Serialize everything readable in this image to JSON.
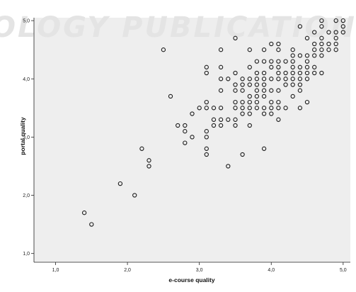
{
  "watermark": "OLOGY PUBLICATIONS",
  "colors": {
    "plot_background": "#eeeeee",
    "marker_stroke": "#1a1a1a",
    "watermark": "#e4e4e4"
  },
  "chart_data": {
    "type": "scatter",
    "xlabel": "e-course quality",
    "ylabel": "portal quality",
    "xlim": [
      0.7,
      5.1
    ],
    "ylim": [
      0.85,
      5.05
    ],
    "xticks": [
      "1,0",
      "2,0",
      "3,0",
      "4,0",
      "5,0"
    ],
    "yticks": [
      "1,0",
      "2,0",
      "3,0",
      "4,0",
      "5,0"
    ],
    "grid": false,
    "marker": "hollow-circle",
    "points": [
      [
        1.4,
        1.7
      ],
      [
        1.5,
        1.5
      ],
      [
        1.9,
        2.2
      ],
      [
        2.1,
        2.0
      ],
      [
        2.2,
        2.8
      ],
      [
        2.3,
        2.6
      ],
      [
        2.3,
        2.5
      ],
      [
        2.5,
        4.5
      ],
      [
        2.6,
        3.7
      ],
      [
        2.7,
        3.2
      ],
      [
        2.8,
        3.2
      ],
      [
        2.8,
        3.1
      ],
      [
        2.8,
        2.9
      ],
      [
        2.9,
        3.4
      ],
      [
        2.9,
        3.0
      ],
      [
        3.0,
        3.5
      ],
      [
        3.1,
        4.2
      ],
      [
        3.1,
        4.1
      ],
      [
        3.1,
        3.6
      ],
      [
        3.1,
        3.5
      ],
      [
        3.1,
        3.1
      ],
      [
        3.1,
        3.0
      ],
      [
        3.1,
        2.8
      ],
      [
        3.1,
        2.7
      ],
      [
        3.2,
        3.5
      ],
      [
        3.2,
        3.3
      ],
      [
        3.2,
        3.2
      ],
      [
        3.3,
        4.5
      ],
      [
        3.3,
        4.2
      ],
      [
        3.3,
        4.0
      ],
      [
        3.3,
        3.8
      ],
      [
        3.3,
        3.5
      ],
      [
        3.3,
        3.3
      ],
      [
        3.3,
        3.2
      ],
      [
        3.4,
        4.0
      ],
      [
        3.4,
        3.3
      ],
      [
        3.4,
        2.5
      ],
      [
        3.5,
        4.7
      ],
      [
        3.5,
        4.1
      ],
      [
        3.5,
        3.9
      ],
      [
        3.5,
        3.8
      ],
      [
        3.5,
        3.6
      ],
      [
        3.5,
        3.5
      ],
      [
        3.5,
        3.3
      ],
      [
        3.5,
        3.2
      ],
      [
        3.6,
        4.0
      ],
      [
        3.6,
        3.9
      ],
      [
        3.6,
        3.8
      ],
      [
        3.6,
        3.6
      ],
      [
        3.6,
        3.5
      ],
      [
        3.6,
        3.4
      ],
      [
        3.6,
        2.7
      ],
      [
        3.7,
        4.5
      ],
      [
        3.7,
        4.2
      ],
      [
        3.7,
        4.0
      ],
      [
        3.7,
        3.9
      ],
      [
        3.7,
        3.7
      ],
      [
        3.7,
        3.6
      ],
      [
        3.7,
        3.5
      ],
      [
        3.7,
        3.4
      ],
      [
        3.7,
        3.2
      ],
      [
        3.8,
        4.3
      ],
      [
        3.8,
        4.1
      ],
      [
        3.8,
        4.0
      ],
      [
        3.8,
        3.9
      ],
      [
        3.8,
        3.8
      ],
      [
        3.8,
        3.7
      ],
      [
        3.8,
        3.6
      ],
      [
        3.8,
        3.5
      ],
      [
        3.9,
        4.5
      ],
      [
        3.9,
        4.3
      ],
      [
        3.9,
        4.1
      ],
      [
        3.9,
        4.0
      ],
      [
        3.9,
        3.9
      ],
      [
        3.9,
        3.8
      ],
      [
        3.9,
        3.7
      ],
      [
        3.9,
        3.5
      ],
      [
        3.9,
        3.4
      ],
      [
        3.9,
        2.8
      ],
      [
        4.0,
        4.6
      ],
      [
        4.0,
        4.3
      ],
      [
        4.0,
        4.2
      ],
      [
        4.0,
        4.0
      ],
      [
        4.0,
        3.8
      ],
      [
        4.0,
        3.6
      ],
      [
        4.0,
        3.5
      ],
      [
        4.0,
        3.4
      ],
      [
        4.1,
        4.6
      ],
      [
        4.1,
        4.5
      ],
      [
        4.1,
        4.3
      ],
      [
        4.1,
        4.2
      ],
      [
        4.1,
        4.1
      ],
      [
        4.1,
        4.0
      ],
      [
        4.1,
        3.8
      ],
      [
        4.1,
        3.6
      ],
      [
        4.1,
        3.5
      ],
      [
        4.1,
        3.3
      ],
      [
        4.2,
        4.3
      ],
      [
        4.2,
        4.1
      ],
      [
        4.2,
        4.0
      ],
      [
        4.2,
        3.9
      ],
      [
        4.2,
        3.5
      ],
      [
        4.3,
        4.5
      ],
      [
        4.3,
        4.4
      ],
      [
        4.3,
        4.3
      ],
      [
        4.3,
        4.2
      ],
      [
        4.3,
        4.1
      ],
      [
        4.3,
        4.0
      ],
      [
        4.3,
        3.9
      ],
      [
        4.3,
        3.7
      ],
      [
        4.4,
        4.9
      ],
      [
        4.4,
        4.4
      ],
      [
        4.4,
        4.2
      ],
      [
        4.4,
        4.1
      ],
      [
        4.4,
        4.0
      ],
      [
        4.4,
        3.9
      ],
      [
        4.4,
        3.8
      ],
      [
        4.4,
        3.5
      ],
      [
        4.5,
        4.7
      ],
      [
        4.5,
        4.4
      ],
      [
        4.5,
        4.3
      ],
      [
        4.5,
        4.2
      ],
      [
        4.5,
        4.1
      ],
      [
        4.5,
        4.0
      ],
      [
        4.5,
        3.6
      ],
      [
        4.6,
        4.8
      ],
      [
        4.6,
        4.6
      ],
      [
        4.6,
        4.5
      ],
      [
        4.6,
        4.4
      ],
      [
        4.6,
        4.2
      ],
      [
        4.6,
        4.1
      ],
      [
        4.7,
        5.0
      ],
      [
        4.7,
        4.9
      ],
      [
        4.7,
        4.7
      ],
      [
        4.7,
        4.6
      ],
      [
        4.7,
        4.5
      ],
      [
        4.7,
        4.4
      ],
      [
        4.7,
        4.1
      ],
      [
        4.8,
        4.8
      ],
      [
        4.8,
        4.6
      ],
      [
        4.8,
        4.5
      ],
      [
        4.9,
        5.0
      ],
      [
        4.9,
        4.8
      ],
      [
        4.9,
        4.7
      ],
      [
        4.9,
        4.6
      ],
      [
        4.9,
        4.5
      ],
      [
        5.0,
        5.0
      ],
      [
        5.0,
        4.9
      ],
      [
        5.0,
        4.8
      ]
    ]
  }
}
